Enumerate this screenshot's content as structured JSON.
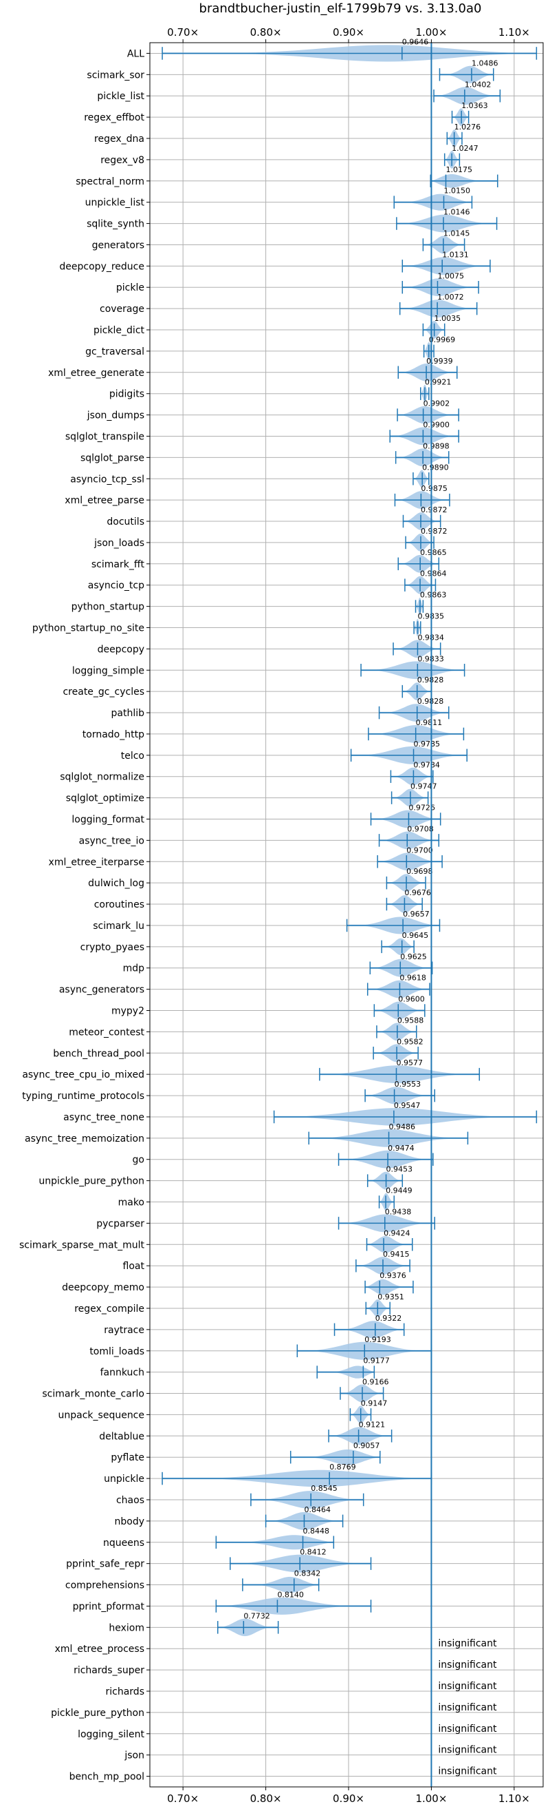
{
  "chart_data": {
    "type": "violin",
    "title": "brandtbucher-justin_elf-1799b79 vs. 3.13.0a0",
    "xlim": [
      0.66,
      1.135
    ],
    "x_ticks": [
      {
        "value": 0.7,
        "label": "0.70×"
      },
      {
        "value": 0.8,
        "label": "0.80×"
      },
      {
        "value": 0.9,
        "label": "0.90×"
      },
      {
        "value": 1.0,
        "label": "1.00×"
      },
      {
        "value": 1.1,
        "label": "1.10×"
      }
    ],
    "reference_line": 1.0,
    "grid": true,
    "colors": {
      "violin": "#a6c8e8",
      "line": "#1f77b4",
      "grid": "#b0b0b0"
    },
    "insignificant_label": "insignificant",
    "benchmarks": [
      {
        "name": "ALL",
        "value": 0.9646,
        "label": "0.9646",
        "min": 0.675,
        "max": 1.127
      },
      {
        "name": "scimark_sor",
        "value": 1.0486,
        "label": "1.0486",
        "min": 1.01,
        "max": 1.075
      },
      {
        "name": "pickle_list",
        "value": 1.0402,
        "label": "1.0402",
        "min": 1.003,
        "max": 1.083
      },
      {
        "name": "regex_effbot",
        "value": 1.0363,
        "label": "1.0363",
        "min": 1.025,
        "max": 1.045
      },
      {
        "name": "regex_dna",
        "value": 1.0276,
        "label": "1.0276",
        "min": 1.019,
        "max": 1.037
      },
      {
        "name": "regex_v8",
        "value": 1.0247,
        "label": "1.0247",
        "min": 1.016,
        "max": 1.034
      },
      {
        "name": "spectral_norm",
        "value": 1.0175,
        "label": "1.0175",
        "min": 0.999,
        "max": 1.08
      },
      {
        "name": "unpickle_list",
        "value": 1.015,
        "label": "1.0150",
        "min": 0.955,
        "max": 1.049
      },
      {
        "name": "sqlite_synth",
        "value": 1.0146,
        "label": "1.0146",
        "min": 0.958,
        "max": 1.079
      },
      {
        "name": "generators",
        "value": 1.0145,
        "label": "1.0145",
        "min": 0.99,
        "max": 1.04
      },
      {
        "name": "deepcopy_reduce",
        "value": 1.0131,
        "label": "1.0131",
        "min": 0.965,
        "max": 1.071
      },
      {
        "name": "pickle",
        "value": 1.0075,
        "label": "1.0075",
        "min": 0.965,
        "max": 1.057
      },
      {
        "name": "coverage",
        "value": 1.0072,
        "label": "1.0072",
        "min": 0.962,
        "max": 1.055
      },
      {
        "name": "pickle_dict",
        "value": 1.0035,
        "label": "1.0035",
        "min": 0.99,
        "max": 1.016
      },
      {
        "name": "gc_traversal",
        "value": 0.9969,
        "label": "0.9969",
        "min": 0.991,
        "max": 1.003
      },
      {
        "name": "xml_etree_generate",
        "value": 0.9939,
        "label": "0.9939",
        "min": 0.96,
        "max": 1.031
      },
      {
        "name": "pidigits",
        "value": 0.9921,
        "label": "0.9921",
        "min": 0.987,
        "max": 0.997
      },
      {
        "name": "json_dumps",
        "value": 0.9902,
        "label": "0.9902",
        "min": 0.959,
        "max": 1.033
      },
      {
        "name": "sqlglot_transpile",
        "value": 0.99,
        "label": "0.9900",
        "min": 0.95,
        "max": 1.033
      },
      {
        "name": "sqlglot_parse",
        "value": 0.9898,
        "label": "0.9898",
        "min": 0.957,
        "max": 1.021
      },
      {
        "name": "asyncio_tcp_ssl",
        "value": 0.989,
        "label": "0.9890",
        "min": 0.978,
        "max": 0.997
      },
      {
        "name": "xml_etree_parse",
        "value": 0.9875,
        "label": "0.9875",
        "min": 0.956,
        "max": 1.022
      },
      {
        "name": "docutils",
        "value": 0.9872,
        "label": "0.9872",
        "min": 0.966,
        "max": 1.011
      },
      {
        "name": "json_loads",
        "value": 0.9872,
        "label": "0.9872",
        "min": 0.969,
        "max": 1.003
      },
      {
        "name": "scimark_fft",
        "value": 0.9865,
        "label": "0.9865",
        "min": 0.96,
        "max": 1.009
      },
      {
        "name": "asyncio_tcp",
        "value": 0.9864,
        "label": "0.9864",
        "min": 0.968,
        "max": 1.005
      },
      {
        "name": "python_startup",
        "value": 0.9863,
        "label": "0.9863",
        "min": 0.981,
        "max": 0.99
      },
      {
        "name": "python_startup_no_site",
        "value": 0.9835,
        "label": "0.9835",
        "min": 0.979,
        "max": 0.987
      },
      {
        "name": "deepcopy",
        "value": 0.9834,
        "label": "0.9834",
        "min": 0.954,
        "max": 1.011
      },
      {
        "name": "logging_simple",
        "value": 0.9833,
        "label": "0.9833",
        "min": 0.915,
        "max": 1.04
      },
      {
        "name": "create_gc_cycles",
        "value": 0.9828,
        "label": "0.9828",
        "min": 0.965,
        "max": 1.0
      },
      {
        "name": "pathlib",
        "value": 0.9828,
        "label": "0.9828",
        "min": 0.937,
        "max": 1.021
      },
      {
        "name": "tornado_http",
        "value": 0.9811,
        "label": "0.9811",
        "min": 0.924,
        "max": 1.039
      },
      {
        "name": "telco",
        "value": 0.9785,
        "label": "0.9785",
        "min": 0.903,
        "max": 1.043
      },
      {
        "name": "sqlglot_normalize",
        "value": 0.9784,
        "label": "0.9784",
        "min": 0.951,
        "max": 1.002
      },
      {
        "name": "sqlglot_optimize",
        "value": 0.9747,
        "label": "0.9747",
        "min": 0.952,
        "max": 0.996
      },
      {
        "name": "logging_format",
        "value": 0.9726,
        "label": "0.9726",
        "min": 0.927,
        "max": 1.011
      },
      {
        "name": "async_tree_io",
        "value": 0.9708,
        "label": "0.9708",
        "min": 0.937,
        "max": 1.009
      },
      {
        "name": "xml_etree_iterparse",
        "value": 0.97,
        "label": "0.9700",
        "min": 0.935,
        "max": 1.013
      },
      {
        "name": "dulwich_log",
        "value": 0.9698,
        "label": "0.9698",
        "min": 0.946,
        "max": 0.993
      },
      {
        "name": "coroutines",
        "value": 0.9676,
        "label": "0.9676",
        "min": 0.946,
        "max": 0.989
      },
      {
        "name": "scimark_lu",
        "value": 0.9657,
        "label": "0.9657",
        "min": 0.898,
        "max": 1.01
      },
      {
        "name": "crypto_pyaes",
        "value": 0.9645,
        "label": "0.9645",
        "min": 0.94,
        "max": 0.979
      },
      {
        "name": "mdp",
        "value": 0.9625,
        "label": "0.9625",
        "min": 0.926,
        "max": 1.001
      },
      {
        "name": "async_generators",
        "value": 0.9618,
        "label": "0.9618",
        "min": 0.923,
        "max": 0.998
      },
      {
        "name": "mypy2",
        "value": 0.96,
        "label": "0.9600",
        "min": 0.931,
        "max": 0.992
      },
      {
        "name": "meteor_contest",
        "value": 0.9588,
        "label": "0.9588",
        "min": 0.934,
        "max": 0.982
      },
      {
        "name": "bench_thread_pool",
        "value": 0.9582,
        "label": "0.9582",
        "min": 0.93,
        "max": 0.984
      },
      {
        "name": "async_tree_cpu_io_mixed",
        "value": 0.9577,
        "label": "0.9577",
        "min": 0.865,
        "max": 1.058
      },
      {
        "name": "typing_runtime_protocols",
        "value": 0.9553,
        "label": "0.9553",
        "min": 0.92,
        "max": 1.004
      },
      {
        "name": "async_tree_none",
        "value": 0.9547,
        "label": "0.9547",
        "min": 0.81,
        "max": 1.127
      },
      {
        "name": "async_tree_memoization",
        "value": 0.9486,
        "label": "0.9486",
        "min": 0.852,
        "max": 1.044
      },
      {
        "name": "go",
        "value": 0.9474,
        "label": "0.9474",
        "min": 0.888,
        "max": 1.002
      },
      {
        "name": "unpickle_pure_python",
        "value": 0.9453,
        "label": "0.9453",
        "min": 0.923,
        "max": 0.965
      },
      {
        "name": "mako",
        "value": 0.9449,
        "label": "0.9449",
        "min": 0.937,
        "max": 0.955
      },
      {
        "name": "pycparser",
        "value": 0.9438,
        "label": "0.9438",
        "min": 0.888,
        "max": 1.004
      },
      {
        "name": "scimark_sparse_mat_mult",
        "value": 0.9424,
        "label": "0.9424",
        "min": 0.922,
        "max": 0.977
      },
      {
        "name": "float",
        "value": 0.9415,
        "label": "0.9415",
        "min": 0.909,
        "max": 0.974
      },
      {
        "name": "deepcopy_memo",
        "value": 0.9376,
        "label": "0.9376",
        "min": 0.92,
        "max": 0.978
      },
      {
        "name": "regex_compile",
        "value": 0.9351,
        "label": "0.9351",
        "min": 0.921,
        "max": 0.95
      },
      {
        "name": "raytrace",
        "value": 0.9322,
        "label": "0.9322",
        "min": 0.883,
        "max": 0.967
      },
      {
        "name": "tomli_loads",
        "value": 0.9193,
        "label": "0.9193",
        "min": 0.838,
        "max": 1.0
      },
      {
        "name": "fannkuch",
        "value": 0.9177,
        "label": "0.9177",
        "min": 0.862,
        "max": 0.931
      },
      {
        "name": "scimark_monte_carlo",
        "value": 0.9166,
        "label": "0.9166",
        "min": 0.89,
        "max": 0.942
      },
      {
        "name": "unpack_sequence",
        "value": 0.9147,
        "label": "0.9147",
        "min": 0.902,
        "max": 0.927
      },
      {
        "name": "deltablue",
        "value": 0.9121,
        "label": "0.9121",
        "min": 0.876,
        "max": 0.952
      },
      {
        "name": "pyflate",
        "value": 0.9057,
        "label": "0.9057",
        "min": 0.83,
        "max": 0.938
      },
      {
        "name": "unpickle",
        "value": 0.8769,
        "label": "0.8769",
        "min": 0.675,
        "max": 1.0
      },
      {
        "name": "chaos",
        "value": 0.8545,
        "label": "0.8545",
        "min": 0.782,
        "max": 0.918
      },
      {
        "name": "nbody",
        "value": 0.8464,
        "label": "0.8464",
        "min": 0.8,
        "max": 0.893
      },
      {
        "name": "nqueens",
        "value": 0.8448,
        "label": "0.8448",
        "min": 0.74,
        "max": 0.882
      },
      {
        "name": "pprint_safe_repr",
        "value": 0.8412,
        "label": "0.8412",
        "min": 0.757,
        "max": 0.927
      },
      {
        "name": "comprehensions",
        "value": 0.8342,
        "label": "0.8342",
        "min": 0.772,
        "max": 0.864
      },
      {
        "name": "pprint_pformat",
        "value": 0.814,
        "label": "0.8140",
        "min": 0.74,
        "max": 0.927
      },
      {
        "name": "hexiom",
        "value": 0.7732,
        "label": "0.7732",
        "min": 0.742,
        "max": 0.815
      },
      {
        "name": "xml_etree_process",
        "insignificant": true
      },
      {
        "name": "richards_super",
        "insignificant": true
      },
      {
        "name": "richards",
        "insignificant": true
      },
      {
        "name": "pickle_pure_python",
        "insignificant": true
      },
      {
        "name": "logging_silent",
        "insignificant": true
      },
      {
        "name": "json",
        "insignificant": true
      },
      {
        "name": "bench_mp_pool",
        "insignificant": true
      }
    ]
  }
}
